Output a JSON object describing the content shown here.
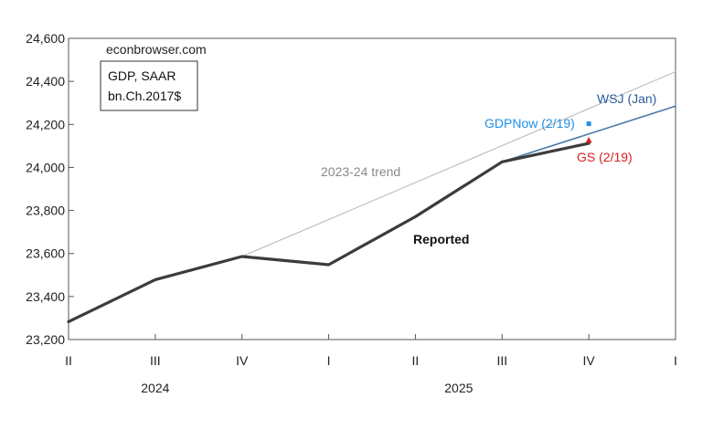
{
  "chart_data": {
    "type": "line",
    "source_label": "econbrowser.com",
    "legend_box": [
      "GDP, SAAR",
      "bn.Ch.2017$"
    ],
    "x_ticks": [
      "II",
      "III",
      "IV",
      "I",
      "II",
      "III",
      "IV",
      "I"
    ],
    "year_labels": [
      {
        "label": "2024",
        "at_quarter": "2024Q3"
      },
      {
        "label": "2025",
        "at_quarter": "2025Q2.5"
      }
    ],
    "ylim": [
      23200,
      24600
    ],
    "y_ticks": [
      23200,
      23400,
      23600,
      23800,
      24000,
      24200,
      24400,
      24600
    ],
    "y_tick_labels": [
      "23,200",
      "23,400",
      "23,600",
      "23,800",
      "24,000",
      "24,200",
      "24,400",
      "24,600"
    ],
    "grid": false,
    "series": [
      {
        "name": "Reported",
        "x": [
          "2024Q2",
          "2024Q3",
          "2024Q4",
          "2025Q1",
          "2025Q2",
          "2025Q3",
          "2025Q4"
        ],
        "values": [
          23283,
          23478,
          23586,
          23548,
          23771,
          24026,
          24112
        ],
        "color": "#3c3c3c"
      },
      {
        "name": "2023-24 trend",
        "x": [
          "2024Q4",
          "2026Q1"
        ],
        "values": [
          23586,
          24445
        ],
        "color": "#b4b4b4"
      },
      {
        "name": "WSJ (Jan)",
        "x": [
          "2025Q3",
          "2026Q1"
        ],
        "values": [
          24026,
          24285
        ],
        "color": "#4a7aa8"
      }
    ],
    "points": [
      {
        "name": "GDPNow (2/19)",
        "x": "2025Q4",
        "value": 24203,
        "color": "#1e8fe6",
        "marker": "square"
      },
      {
        "name": "GS (2/19)",
        "x": "2025Q4",
        "value": 24125,
        "color": "#d62020",
        "marker": "triangle"
      }
    ],
    "annotations": {
      "trend": "2023-24 trend",
      "reported": "Reported",
      "wsj": "WSJ (Jan)",
      "gdpnow": "GDPNow (2/19)",
      "gs": "GS (2/19)"
    }
  }
}
